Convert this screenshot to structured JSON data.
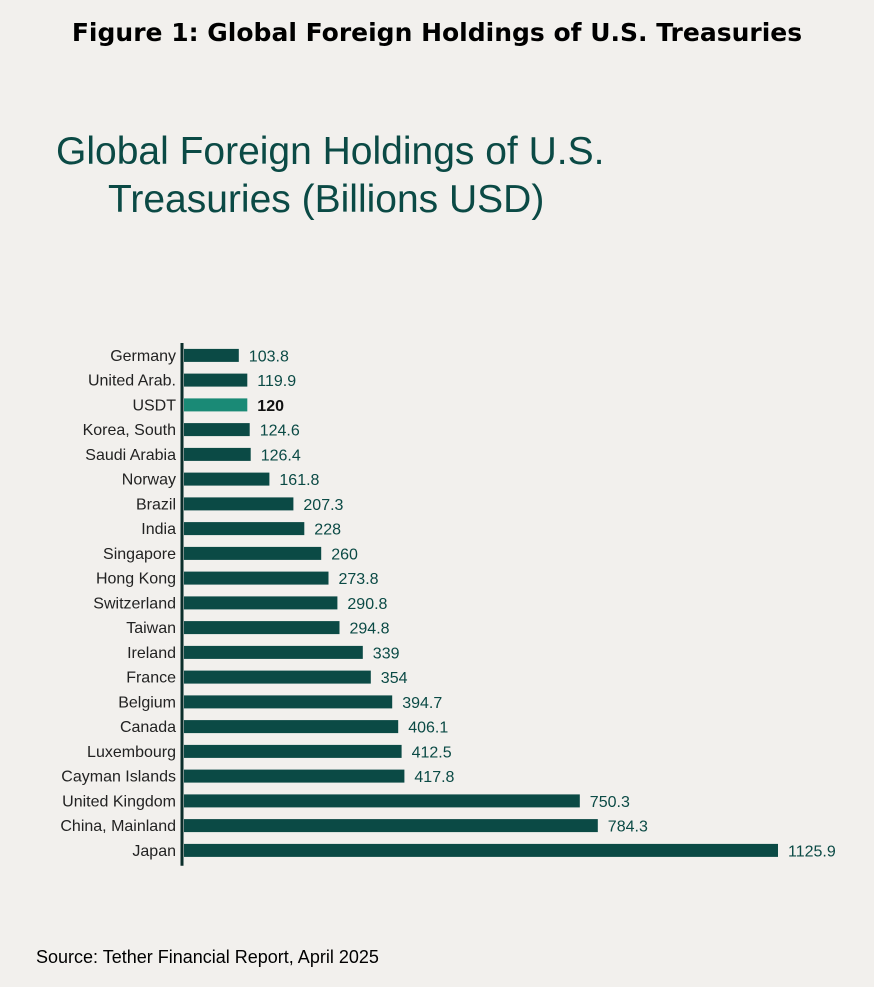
{
  "figure_title": "Figure 1: Global Foreign Holdings of U.S. Treasuries",
  "source": "Source: Tether Financial Report, April 2025",
  "colors": {
    "bar": "#0b4a45",
    "highlight": "#1a8a76",
    "axis": "#0b2e2b"
  },
  "chart_data": {
    "type": "bar",
    "orientation": "horizontal",
    "title_lines": [
      "Global Foreign Holdings of U.S.",
      "Treasuries (Billions USD)"
    ],
    "categories": [
      "Germany",
      "United Arab.",
      "USDT",
      "Korea, South",
      "Saudi Arabia",
      "Norway",
      "Brazil",
      "India",
      "Singapore",
      "Hong Kong",
      "Switzerland",
      "Taiwan",
      "Ireland",
      "France",
      "Belgium",
      "Canada",
      "Luxembourg",
      "Cayman Islands",
      "United Kingdom",
      "China, Mainland",
      "Japan"
    ],
    "values": [
      103.8,
      119.9,
      120,
      124.6,
      126.4,
      161.8,
      207.3,
      228,
      260,
      273.8,
      290.8,
      294.8,
      339,
      354,
      394.7,
      406.1,
      412.5,
      417.8,
      750.3,
      784.3,
      1125.9
    ],
    "value_labels": [
      "103.8",
      "119.9",
      "120",
      "124.6",
      "126.4",
      "161.8",
      "207.3",
      "228",
      "260",
      "273.8",
      "290.8",
      "294.8",
      "339",
      "354",
      "394.7",
      "406.1",
      "412.5",
      "417.8",
      "750.3",
      "784.3",
      "1125.9"
    ],
    "highlight": "USDT",
    "xlim": [
      0,
      1125.9
    ],
    "xlabel": "",
    "ylabel": ""
  }
}
